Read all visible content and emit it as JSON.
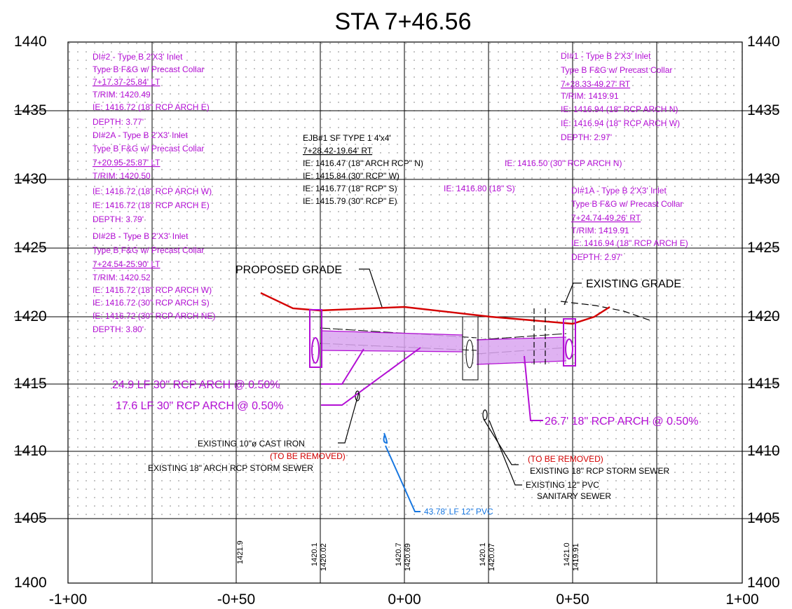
{
  "title": "STA 7+46.56",
  "colors": {
    "magenta": "#b30fd4",
    "pipe_fill": "#d9a4f0",
    "red": "#d40000",
    "blue": "#1877e0",
    "black": "#000000",
    "grid_dot": "#9a9a9a"
  },
  "axes": {
    "elev_labels": [
      "1440",
      "1435",
      "1430",
      "1425",
      "1420",
      "1415",
      "1410",
      "1405",
      "1400"
    ],
    "station_labels": [
      "-1+00",
      "-0+50",
      "0+00",
      "0+50",
      "1+00"
    ]
  },
  "notes_left": [
    [
      "DI#2 - Type B 2'X3' Inlet",
      "Type B F&G w/ Precast Collar",
      "7+17.37-25.84' LT",
      "T/RIM: 1420.49",
      "IE: 1416.72 (18\" RCP ARCH E)",
      "DEPTH: 3.77'"
    ],
    [
      "DI#2A - Type B 2'X3' Inlet",
      "Type B F&G w/ Precast Collar",
      "7+20.95-25.87' LT",
      "T/RIM: 1420.50",
      "IE: 1416.72 (18\" RCP ARCH W)",
      "IE: 1416.72 (18\" RCP ARCH E)",
      "DEPTH: 3.79'"
    ],
    [
      "DI#2B - Type B 2'X3' Inlet",
      "Type B F&G w/ Precast Collar",
      "7+24.54-25.90' LT",
      "T/RIM: 1420.52",
      "IE: 1416.72 (18\" RCP ARCH W)",
      "IE: 1416.72 (30\" RCP ARCH S)",
      "IE: 1416.72 (30\" RCP ARCH NE)",
      "DEPTH: 3.80'"
    ]
  ],
  "notes_right": [
    [
      "DI#1 - Type B 2'X3' Inlet",
      "Type B F&G w/ Precast Collar",
      "7+28.33-49.27' RT",
      "T/RIM: 1419.91",
      "IE: 1416.94 (18\" RCP ARCH N)",
      "IE: 1416.94 (18\" RCP ARCH W)",
      "DEPTH: 2.97'"
    ],
    [
      "DI#1A - Type B 2'X3' Inlet",
      "Type B F&G w/ Precast Collar",
      "7+24.74-49.26' RT",
      "T/RIM: 1419.91",
      "IE: 1416.94 (18\" RCP ARCH E)",
      "DEPTH: 2.97'"
    ]
  ],
  "ejb": {
    "lines": [
      "EJB#1 SF TYPE 1 4'x4'",
      "7+28.42-19.64' RT",
      "IE: 1416.47 (18\" ARCH RCP\" N)",
      "IE: 1415.84 (30\" RCP\" W)",
      "IE: 1416.77 (18\" RCP\" S)",
      "IE: 1415.79 (30\" RCP\" E)"
    ],
    "extra_n": "IE: 1416.50 (30\" RCP ARCH N)",
    "extra_s": "IE: 1416.80 (18\" S)"
  },
  "labels": {
    "proposed_grade": "PROPOSED GRADE",
    "existing_grade": "EXISTING GRADE",
    "pipe_249": "24.9 LF 30\" RCP ARCH @ 0.50%",
    "pipe_176": "17.6 LF 30\" RCP ARCH @ 0.50%",
    "pipe_267": "26.7' 18\" RCP ARCH @ 0.50%",
    "cast_iron": "EXISTING 10\"ø CAST IRON",
    "to_be_removed_1": "(TO BE REMOVED)",
    "storm_sewer_1": "EXISTING 18\" ARCH RCP STORM SEWER",
    "to_be_removed_2": "(TO BE REMOVED)",
    "storm_sewer_2": "EXISTING 18\" RCP STORM SEWER",
    "pvc_1": "EXISTING 12\" PVC",
    "pvc_2": "SANITARY SEWER",
    "pvc_new": "43.78' LF 12\" PVC"
  },
  "elevations": [
    {
      "existing": "1421.9",
      "proposed": ""
    },
    {
      "existing": "1420.1",
      "proposed": "1420.02"
    },
    {
      "existing": "1420.7",
      "proposed": "1420.69"
    },
    {
      "existing": "1420.1",
      "proposed": "1420.07"
    },
    {
      "existing": "1421.0",
      "proposed": "1419.91"
    }
  ]
}
